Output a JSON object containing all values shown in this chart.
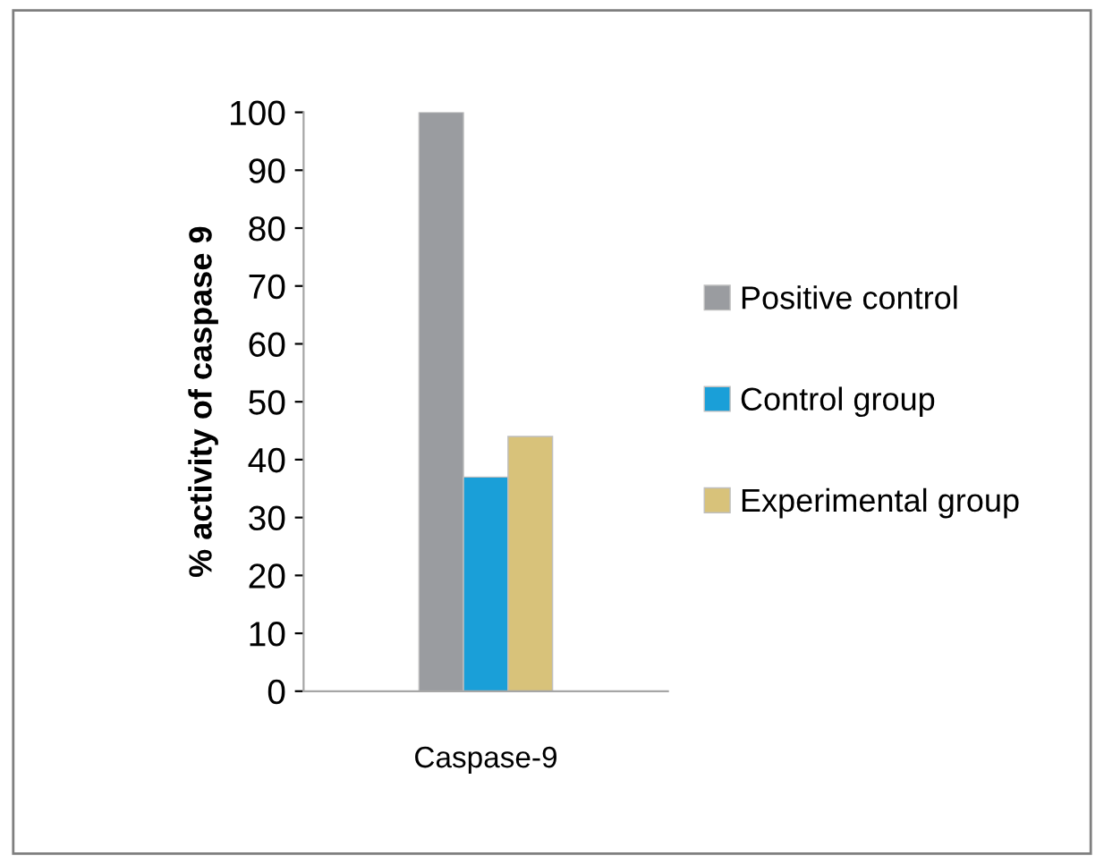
{
  "chart_data": {
    "type": "bar",
    "ylabel": "% activity of caspase 9",
    "categories": [
      "Caspase-9"
    ],
    "series": [
      {
        "name": "Positive control",
        "color": "#9a9ca0",
        "values": [
          100
        ]
      },
      {
        "name": "Control group",
        "color": "#1a9fd8",
        "values": [
          37
        ]
      },
      {
        "name": "Experimental group",
        "color": "#d8c27a",
        "values": [
          44
        ]
      }
    ],
    "ylim": [
      0,
      100
    ],
    "yticks": [
      0,
      10,
      20,
      30,
      40,
      50,
      60,
      70,
      80,
      90,
      100
    ],
    "grid": false,
    "legend": "right"
  }
}
